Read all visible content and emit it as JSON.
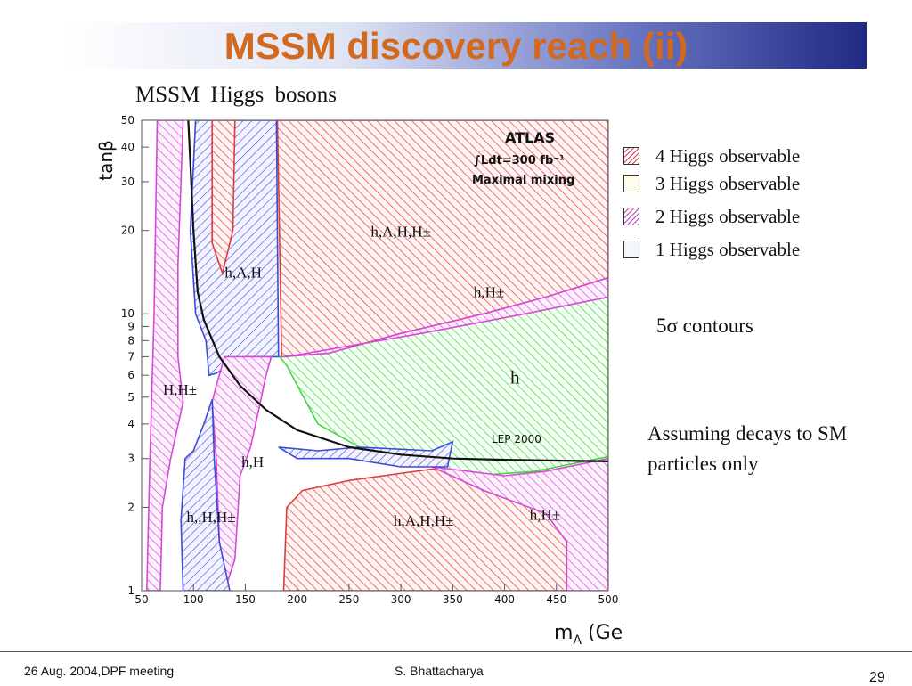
{
  "slide": {
    "title": "MSSM discovery reach (ii)",
    "footer_left": "26 Aug. 2004,DPF meeting",
    "footer_center": "S. Bhattacharya",
    "page_number": "29"
  },
  "chart_data": {
    "type": "area",
    "title": "MSSM  Higgs  bosons",
    "xlabel": "m_A (GeV)",
    "ylabel": "tanβ",
    "xlim": [
      50,
      500
    ],
    "ylim": [
      1,
      50
    ],
    "yscale": "log",
    "x_ticks": [
      "50",
      "100",
      "150",
      "200",
      "250",
      "300",
      "350",
      "400",
      "450",
      "500"
    ],
    "y_ticks": [
      {
        "value": 1,
        "label": "1"
      },
      {
        "value": 2,
        "label": "2"
      },
      {
        "value": 3,
        "label": "3"
      },
      {
        "value": 4,
        "label": "4"
      },
      {
        "value": 5,
        "label": "5"
      },
      {
        "value": 6,
        "label": "6"
      },
      {
        "value": 7,
        "label": "7"
      },
      {
        "value": 8,
        "label": "8"
      },
      {
        "value": 9,
        "label": "9"
      },
      {
        "value": 10,
        "label": "10"
      },
      {
        "value": 20,
        "label": "20"
      },
      {
        "value": 30,
        "label": "30"
      },
      {
        "value": 40,
        "label": "40"
      },
      {
        "value": 50,
        "label": "50"
      }
    ],
    "annotation_lines": [
      "ATLAS",
      "∫Ldt=300 fb⁻¹",
      "Maximal mixing"
    ],
    "lep_label": "LEP 2000",
    "legend_position": "right",
    "legend": [
      {
        "label": "4 Higgs observable",
        "hatch": "#e0405a"
      },
      {
        "label": "3 Higgs observable",
        "hatch": "#d6d6a0"
      },
      {
        "label": "2 Higgs observable",
        "hatch": "#c040c0"
      },
      {
        "label": "1 Higgs observable",
        "hatch": "#7fb0c0"
      }
    ],
    "region_labels": [
      {
        "text": "h,A,H,H±",
        "x": 300,
        "y": 19
      },
      {
        "text": "h,A,H",
        "x": 148,
        "y": 13.5
      },
      {
        "text": "h,H±",
        "x": 385,
        "y": 11.5
      },
      {
        "text": "h",
        "x": 410,
        "y": 5.6
      },
      {
        "text": "H,H±",
        "x": 87,
        "y": 5.1
      },
      {
        "text": "h,H",
        "x": 157,
        "y": 2.8
      },
      {
        "text": "h,,H,H±",
        "x": 117,
        "y": 1.77
      },
      {
        "text": "h,A,H,H±",
        "x": 322,
        "y": 1.72
      },
      {
        "text": "h,H±",
        "x": 439,
        "y": 1.8
      }
    ],
    "regions": [
      {
        "name": "h",
        "color": "#3fd63f",
        "points": [
          [
            183,
            7
          ],
          [
            500,
            11.5
          ],
          [
            500,
            3.05
          ],
          [
            430,
            2.7
          ],
          [
            370,
            2.6
          ],
          [
            330,
            2.8
          ],
          [
            260,
            3.3
          ],
          [
            220,
            4.0
          ],
          [
            190,
            6.5
          ]
        ]
      },
      {
        "name": "h,A,H,H± (upper)",
        "color": "#e03b3b",
        "points": [
          [
            181,
            50
          ],
          [
            500,
            50
          ],
          [
            500,
            13.5
          ],
          [
            440,
            11.5
          ],
          [
            380,
            10
          ],
          [
            300,
            8.5
          ],
          [
            230,
            7.2
          ],
          [
            185,
            7.0
          ]
        ]
      },
      {
        "name": "h,H± (band)",
        "color": "#d848d8",
        "points": [
          [
            185,
            7.0
          ],
          [
            230,
            7.2
          ],
          [
            300,
            8.5
          ],
          [
            380,
            10
          ],
          [
            440,
            11.5
          ],
          [
            500,
            13.5
          ],
          [
            500,
            11.5
          ],
          [
            420,
            10
          ],
          [
            320,
            8.5
          ],
          [
            190,
            7.0
          ]
        ]
      },
      {
        "name": "h,A,H,H± (lower)",
        "color": "#e03b3b",
        "points": [
          [
            187,
            1
          ],
          [
            480,
            1
          ],
          [
            480,
            1.8
          ],
          [
            440,
            2.2
          ],
          [
            400,
            2.5
          ],
          [
            330,
            2.75
          ],
          [
            250,
            2.5
          ],
          [
            205,
            2.3
          ],
          [
            190,
            2.0
          ]
        ]
      },
      {
        "name": "h,H± (lower right)",
        "color": "#d848d8",
        "points": [
          [
            460,
            1
          ],
          [
            500,
            1
          ],
          [
            500,
            3.0
          ],
          [
            440,
            2.7
          ],
          [
            400,
            2.6
          ],
          [
            330,
            2.8
          ],
          [
            380,
            2.3
          ],
          [
            440,
            1.9
          ],
          [
            460,
            1.5
          ]
        ]
      },
      {
        "name": "H,H± (left band)",
        "color": "#d848d8",
        "points": [
          [
            65,
            50
          ],
          [
            90,
            50
          ],
          [
            88,
            30
          ],
          [
            85,
            15
          ],
          [
            85,
            7
          ],
          [
            90,
            4.8
          ],
          [
            78,
            3
          ],
          [
            70,
            2
          ],
          [
            68,
            1
          ],
          [
            55,
            1
          ],
          [
            58,
            3
          ],
          [
            62,
            10
          ]
        ]
      },
      {
        "name": "h,A,H (column)",
        "color": "#3b4ad8",
        "points": [
          [
            102,
            50
          ],
          [
            180,
            50
          ],
          [
            182,
            7
          ],
          [
            150,
            7
          ],
          [
            122,
            6.1
          ],
          [
            115,
            6
          ],
          [
            112,
            8
          ],
          [
            102,
            10
          ],
          [
            97,
            20
          ]
        ]
      },
      {
        "name": "h,H (central)",
        "color": "#d848d8",
        "points": [
          [
            130,
            7
          ],
          [
            175,
            7
          ],
          [
            170,
            6
          ],
          [
            160,
            4
          ],
          [
            155,
            3.3
          ],
          [
            145,
            2.6
          ],
          [
            140,
            1.3
          ],
          [
            130,
            1
          ],
          [
            125,
            1.5
          ],
          [
            122,
            3
          ],
          [
            118,
            4.8
          ],
          [
            122,
            5.5
          ]
        ]
      },
      {
        "name": "h,,H,H± (blue left)",
        "color": "#3b4ad8",
        "points": [
          [
            90,
            1
          ],
          [
            135,
            1
          ],
          [
            125,
            1.5
          ],
          [
            120,
            3
          ],
          [
            118,
            4.9
          ],
          [
            110,
            4
          ],
          [
            100,
            3.2
          ],
          [
            92,
            3
          ],
          [
            88,
            1.8
          ]
        ]
      },
      {
        "name": "blue right",
        "color": "#3b4ad8",
        "points": [
          [
            182,
            3.3
          ],
          [
            220,
            3.2
          ],
          [
            260,
            3.3
          ],
          [
            330,
            3.2
          ],
          [
            350,
            3.45
          ],
          [
            345,
            2.8
          ],
          [
            300,
            2.8
          ],
          [
            250,
            3.0
          ],
          [
            200,
            3.0
          ]
        ]
      },
      {
        "name": "h,A,H red spike",
        "color": "#e03b3b",
        "points": [
          [
            118,
            50
          ],
          [
            140,
            50
          ],
          [
            138,
            20
          ],
          [
            128,
            14
          ],
          [
            118,
            18
          ]
        ]
      }
    ],
    "sm_curve": [
      [
        95,
        50
      ],
      [
        97,
        35
      ],
      [
        100,
        20
      ],
      [
        104,
        12
      ],
      [
        110,
        9.5
      ],
      [
        125,
        7.0
      ],
      [
        145,
        5.5
      ],
      [
        170,
        4.5
      ],
      [
        200,
        3.8
      ],
      [
        250,
        3.3
      ],
      [
        300,
        3.1
      ],
      [
        350,
        3.0
      ],
      [
        400,
        2.97
      ],
      [
        450,
        2.95
      ],
      [
        500,
        2.93
      ]
    ]
  }
}
